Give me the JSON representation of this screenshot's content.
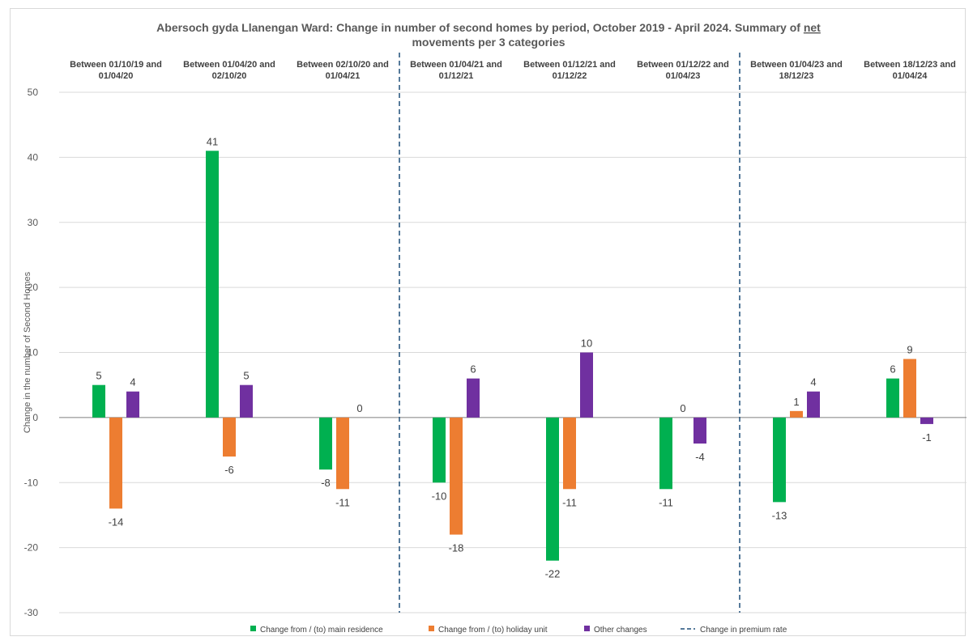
{
  "chart_data": {
    "type": "bar",
    "title": [
      "Abersoch gyda Llanengan Ward: Change in number of second homes by period, October 2019 - April 2024. Summary of net",
      "movements per 3 categories"
    ],
    "title_underlined_word": "net",
    "ylabel": "Change in the number of Second Homes",
    "xlabel": "",
    "ylim": [
      -30,
      50
    ],
    "yticks": [
      -30,
      -20,
      -10,
      0,
      10,
      20,
      30,
      40,
      50
    ],
    "grid": true,
    "legend_position": "bottom",
    "categories": [
      [
        "Between 01/10/19 and",
        "01/04/20"
      ],
      [
        "Between 01/04/20 and",
        "02/10/20"
      ],
      [
        "Between 02/10/20 and",
        "01/04/21"
      ],
      [
        "Between 01/04/21 and",
        "01/12/21"
      ],
      [
        "Between 01/12/21 and",
        "01/12/22"
      ],
      [
        "Between 01/12/22 and",
        "01/04/23"
      ],
      [
        "Between 01/04/23 and",
        "18/12/23"
      ],
      [
        "Between 18/12/23 and",
        "01/04/24"
      ]
    ],
    "series": [
      {
        "name": "Change from / (to) main residence",
        "color": "#00b050",
        "values": [
          5,
          41,
          -8,
          -10,
          -22,
          -11,
          -13,
          6
        ]
      },
      {
        "name": "Change from / (to) holiday unit",
        "color": "#ed7d31",
        "values": [
          -14,
          -6,
          -11,
          -18,
          -11,
          null,
          1,
          9
        ]
      },
      {
        "name": "Other changes",
        "color": "#7030a0",
        "values": [
          4,
          5,
          0,
          6,
          10,
          -4,
          4,
          -1
        ]
      }
    ],
    "data_labels": [
      [
        "5",
        "-14",
        "4"
      ],
      [
        "41",
        "-6",
        "5"
      ],
      [
        "-8",
        "-11",
        "0"
      ],
      [
        "-10",
        "-18",
        "6"
      ],
      [
        "-22",
        "-11",
        "10"
      ],
      [
        "-11",
        "0",
        "-4"
      ],
      [
        "-13",
        "1",
        "4"
      ],
      [
        "6",
        "9",
        "-1"
      ]
    ],
    "premium_rate_change_after_category_index": [
      2,
      5
    ],
    "premium_rate_line": {
      "name": "Change in premium rate",
      "color": "#1f4e79"
    }
  }
}
